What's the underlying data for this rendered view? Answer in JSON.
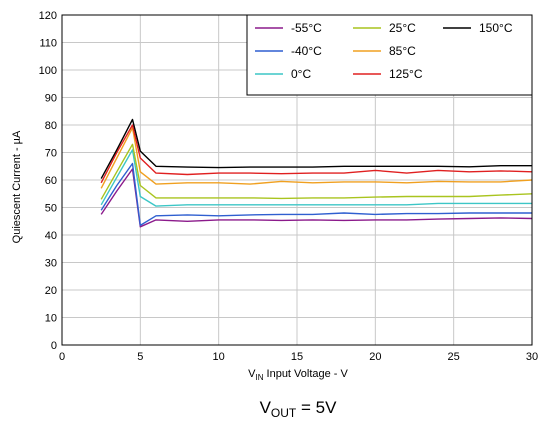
{
  "chart_data": {
    "type": "line",
    "title": "",
    "caption": {
      "main": "V",
      "sub": "OUT",
      "rest": " = 5V"
    },
    "xlabel": {
      "main": "V",
      "sub": "IN",
      "rest": " Input Voltage - V"
    },
    "ylabel": "Quiescent Current - µA",
    "xlim": [
      0,
      30
    ],
    "ylim": [
      0,
      120
    ],
    "xticks": [
      0,
      5,
      10,
      15,
      20,
      25,
      30
    ],
    "yticks": [
      0,
      10,
      20,
      30,
      40,
      50,
      60,
      70,
      80,
      90,
      100,
      110,
      120
    ],
    "grid": true,
    "legend_position": "top-right",
    "x": [
      2.5,
      3.5,
      4.5,
      5,
      6,
      8,
      10,
      12,
      14,
      16,
      18,
      20,
      22,
      24,
      26,
      28,
      30
    ],
    "series": [
      {
        "name": "-55°C",
        "color": "#8b1a8b",
        "values": [
          47.5,
          56,
          64,
          43,
          45.5,
          45,
          45.5,
          45.5,
          45.3,
          45.5,
          45.3,
          45.5,
          45.5,
          45.8,
          46,
          46.2,
          46
        ]
      },
      {
        "name": "-40°C",
        "color": "#2f5fd0",
        "values": [
          49,
          58,
          66,
          43.5,
          47,
          47.3,
          47,
          47.3,
          47.5,
          47.5,
          48,
          47.5,
          47.8,
          47.8,
          48,
          48,
          48
        ]
      },
      {
        "name": "0°C",
        "color": "#3cc6c6",
        "values": [
          51,
          61,
          71,
          54,
          50.5,
          51,
          51,
          51,
          51,
          51,
          51,
          51,
          51,
          51.5,
          51.5,
          51.5,
          51.5
        ]
      },
      {
        "name": "25°C",
        "color": "#a9c41f",
        "values": [
          53,
          63,
          73,
          58,
          53.5,
          53.5,
          53.5,
          53.5,
          53.3,
          53.5,
          53.5,
          53.8,
          54,
          54,
          54,
          54.5,
          55
        ]
      },
      {
        "name": "85°C",
        "color": "#f0a020",
        "values": [
          57,
          68,
          79,
          63,
          58.5,
          59,
          59,
          58.5,
          59.5,
          59,
          59.3,
          59.3,
          59,
          59.5,
          59.3,
          59.3,
          60
        ]
      },
      {
        "name": "125°C",
        "color": "#e02020",
        "values": [
          59,
          70,
          80,
          68,
          62.5,
          62,
          62.5,
          62.5,
          62.3,
          62.5,
          62.5,
          63.5,
          62.5,
          63.5,
          63,
          63.3,
          63
        ]
      },
      {
        "name": "150°C",
        "color": "#000000",
        "values": [
          60.5,
          71,
          82,
          70.5,
          65,
          64.7,
          64.5,
          64.7,
          64.7,
          64.7,
          65,
          65,
          65,
          65,
          64.8,
          65.2,
          65.2
        ]
      }
    ]
  }
}
